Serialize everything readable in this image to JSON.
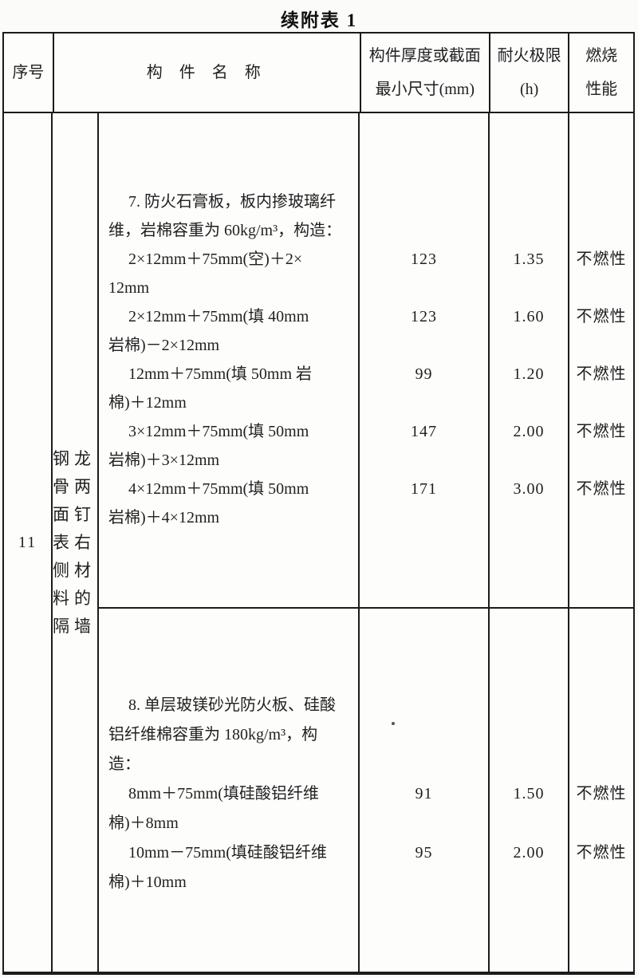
{
  "page_title": "续附表 1",
  "table": {
    "header": {
      "serial": "序号",
      "name": "构 件 名 称",
      "thickness_line1": "构件厚度或截面",
      "thickness_line2": "最小尺寸(mm)",
      "fire_line1": "耐火极限",
      "fire_line2": "(h)",
      "combustion_line1": "燃烧",
      "combustion_line2": "性能"
    },
    "row": {
      "serial": "11",
      "category": "钢龙骨两面钉表右侧材料的隔墙",
      "sections": [
        {
          "lines": [
            "7. 防火石膏板，板内掺玻璃纤",
            "维，岩棉容重为 60kg/m³，构造：",
            "2×12mm＋75mm(空)＋2×",
            "12mm",
            "2×12mm＋75mm(填 40mm",
            "岩棉)－2×12mm",
            "12mm＋75mm(填 50mm 岩",
            "棉)＋12mm",
            "3×12mm＋75mm(填 50mm",
            "岩棉)＋3×12mm",
            "4×12mm＋75mm(填 50mm",
            "岩棉)＋4×12mm"
          ],
          "specs": [
            {
              "thickness": "123",
              "fire": "1.35",
              "combustion": "不燃性"
            },
            {
              "thickness": "123",
              "fire": "1.60",
              "combustion": "不燃性"
            },
            {
              "thickness": "99",
              "fire": "1.20",
              "combustion": "不燃性"
            },
            {
              "thickness": "147",
              "fire": "2.00",
              "combustion": "不燃性"
            },
            {
              "thickness": "171",
              "fire": "3.00",
              "combustion": "不燃性"
            }
          ]
        },
        {
          "lines": [
            "8. 单层玻镁砂光防火板、硅酸",
            "铝纤维棉容重为 180kg/m³，构",
            "造：",
            "8mm＋75mm(填硅酸铝纤维",
            "棉)＋8mm",
            "10mm－75mm(填硅酸铝纤维",
            "棉)＋10mm"
          ],
          "specs": [
            {
              "thickness": "91",
              "fire": "1.50",
              "combustion": "不燃性"
            },
            {
              "thickness": "95",
              "fire": "2.00",
              "combustion": "不燃性"
            }
          ]
        }
      ]
    }
  }
}
